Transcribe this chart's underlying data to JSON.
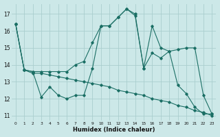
{
  "xlabel": "Humidex (Indice chaleur)",
  "bg_color": "#cce8e8",
  "grid_color": "#aacece",
  "line_color": "#1a6e64",
  "x_ticks": [
    0,
    1,
    2,
    3,
    4,
    5,
    6,
    7,
    8,
    9,
    10,
    11,
    12,
    13,
    14,
    15,
    16,
    17,
    18,
    19,
    20,
    21,
    22,
    23
  ],
  "y_ticks": [
    11,
    12,
    13,
    14,
    15,
    16,
    17
  ],
  "ylim": [
    10.7,
    17.6
  ],
  "xlim": [
    -0.5,
    23.5
  ],
  "line1_x": [
    0,
    1,
    2,
    3,
    4,
    5,
    6,
    7,
    8,
    9,
    10,
    11,
    12,
    13,
    14,
    15,
    16,
    17,
    18,
    19,
    20,
    21,
    22,
    23
  ],
  "line1_y": [
    16.4,
    13.7,
    13.6,
    13.6,
    13.6,
    13.6,
    13.6,
    14.0,
    14.2,
    15.3,
    16.3,
    16.3,
    16.8,
    17.3,
    17.0,
    13.8,
    14.7,
    14.4,
    14.8,
    14.9,
    15.0,
    15.0,
    12.2,
    11.1
  ],
  "line2_x": [
    0,
    1,
    2,
    3,
    4,
    5,
    6,
    7,
    8,
    9,
    10,
    11,
    12,
    13,
    14,
    15,
    16,
    17,
    18,
    19,
    20,
    21,
    22,
    23
  ],
  "line2_y": [
    16.4,
    13.7,
    13.6,
    12.1,
    12.7,
    12.2,
    12.0,
    12.2,
    12.2,
    13.8,
    16.3,
    16.3,
    16.8,
    17.3,
    16.9,
    13.8,
    16.3,
    15.0,
    14.8,
    12.8,
    12.3,
    11.5,
    11.1,
    11.1
  ],
  "line3_x": [
    0,
    1,
    2,
    3,
    4,
    5,
    6,
    7,
    8,
    9,
    10,
    11,
    12,
    13,
    14,
    15,
    16,
    17,
    18,
    19,
    20,
    21,
    22,
    23
  ],
  "line3_y": [
    16.4,
    13.7,
    13.5,
    13.5,
    13.4,
    13.3,
    13.2,
    13.1,
    13.0,
    12.9,
    12.8,
    12.7,
    12.5,
    12.4,
    12.3,
    12.2,
    12.0,
    11.9,
    11.8,
    11.6,
    11.5,
    11.3,
    11.2,
    11.0
  ]
}
